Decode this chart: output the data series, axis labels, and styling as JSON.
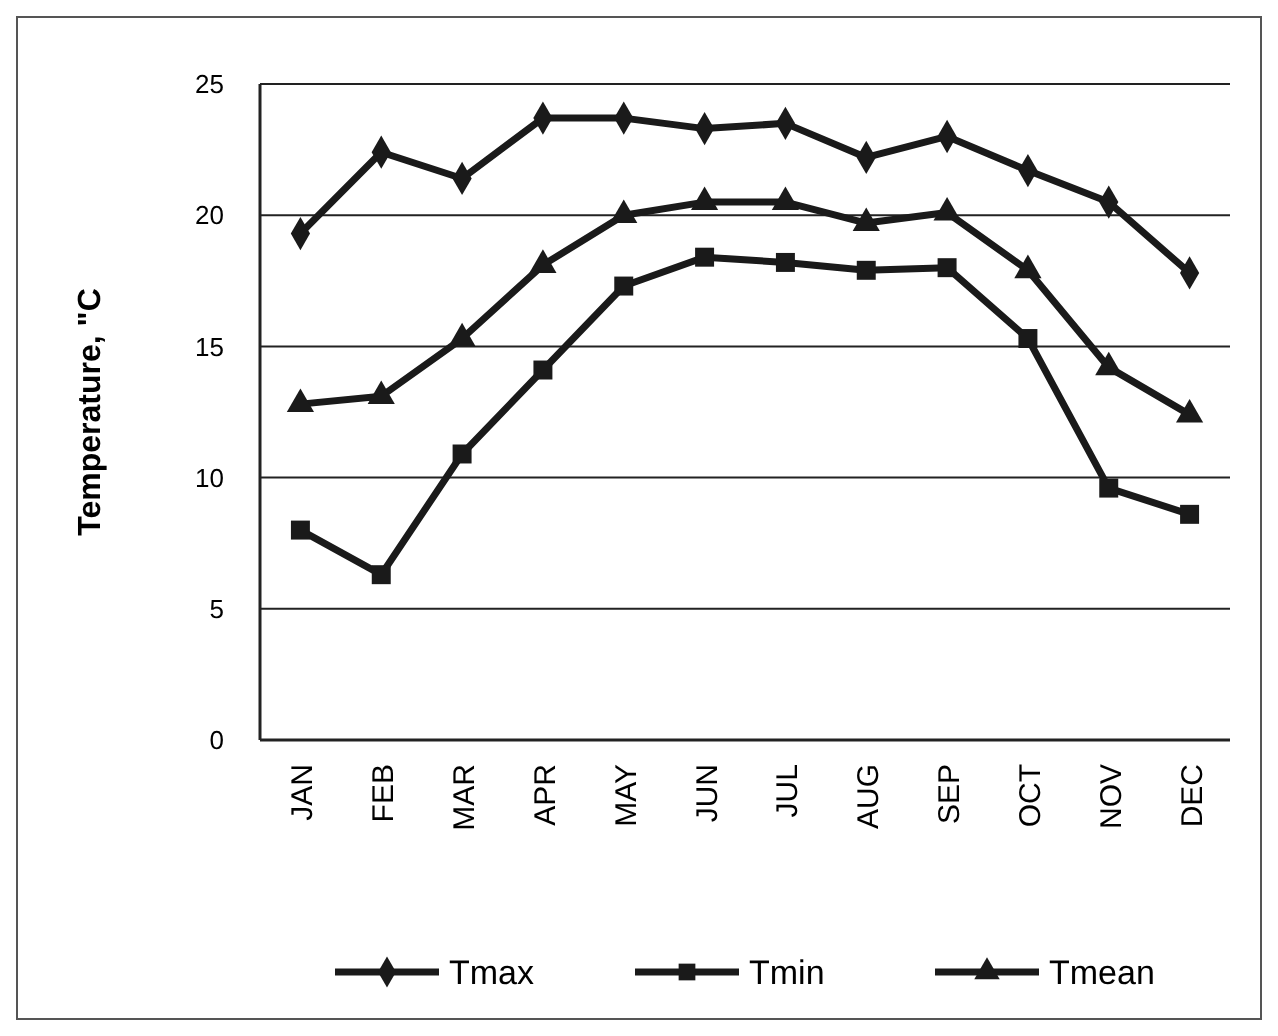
{
  "chart_data": {
    "type": "line",
    "ylabel": "Temperature, \"C",
    "categories": [
      "JAN",
      "FEB",
      "MAR",
      "APR",
      "MAY",
      "JUN",
      "JUL",
      "AUG",
      "SEP",
      "OCT",
      "NOV",
      "DEC"
    ],
    "series": [
      {
        "name": "Tmax",
        "color": "#1a1a1a",
        "marker": "diamond",
        "values": [
          19.3,
          22.4,
          21.4,
          23.7,
          23.7,
          23.3,
          23.5,
          22.2,
          23.0,
          21.7,
          20.5,
          17.8
        ]
      },
      {
        "name": "Tmin",
        "color": "#1a1a1a",
        "marker": "square",
        "values": [
          8.0,
          6.3,
          10.9,
          14.1,
          17.3,
          18.4,
          18.2,
          17.9,
          18.0,
          15.3,
          9.6,
          8.6
        ]
      },
      {
        "name": "Tmean",
        "color": "#1a1a1a",
        "marker": "triangle",
        "values": [
          12.8,
          13.1,
          15.3,
          18.1,
          20.0,
          20.5,
          20.5,
          19.7,
          20.1,
          17.9,
          14.2,
          12.4
        ]
      }
    ],
    "ylim": [
      0,
      25
    ],
    "yticks": [
      0,
      5,
      10,
      15,
      20,
      25
    ],
    "grid": "y",
    "legend": "bottom"
  }
}
